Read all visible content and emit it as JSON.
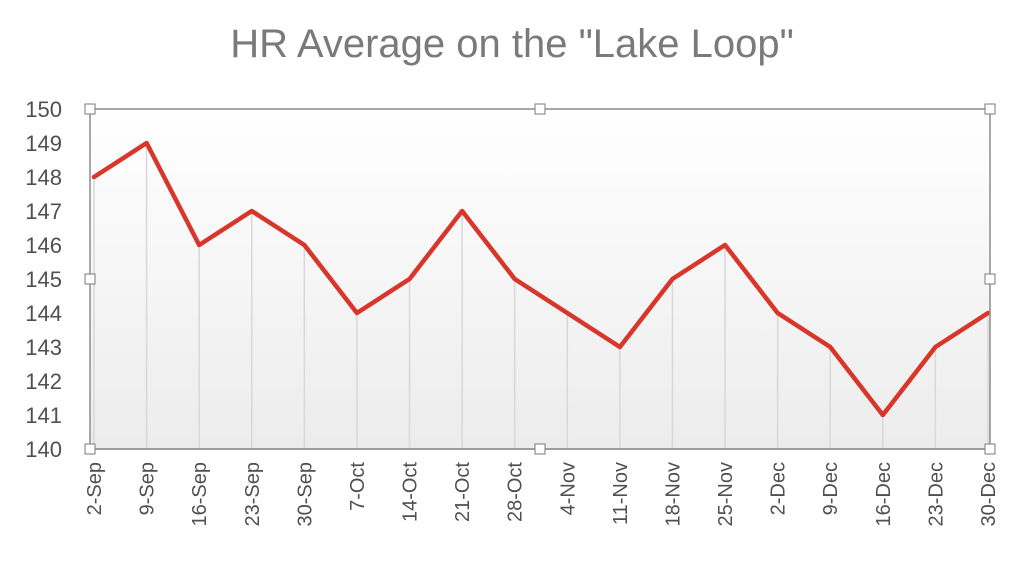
{
  "chart_data": {
    "type": "line",
    "title": "HR Average on the \"Lake Loop\"",
    "xlabel": "",
    "ylabel": "",
    "categories": [
      "2-Sep",
      "9-Sep",
      "16-Sep",
      "23-Sep",
      "30-Sep",
      "7-Oct",
      "14-Oct",
      "21-Oct",
      "28-Oct",
      "4-Nov",
      "11-Nov",
      "18-Nov",
      "25-Nov",
      "2-Dec",
      "9-Dec",
      "16-Dec",
      "23-Dec",
      "30-Dec"
    ],
    "series": [
      {
        "values": [
          148,
          149,
          146,
          147,
          146,
          144,
          145,
          147,
          145,
          144,
          143,
          145,
          146,
          144,
          143,
          141,
          143,
          144
        ]
      }
    ],
    "ylim": [
      140,
      150
    ],
    "yticks": [
      "140",
      "141",
      "142",
      "143",
      "144",
      "145",
      "146",
      "147",
      "148",
      "149",
      "150"
    ],
    "grid": "vertical drop lines",
    "legend": "none",
    "colors": {
      "line": "#d9362b",
      "grid": "#d8d8d8",
      "axis": "#8c8c8c"
    }
  }
}
